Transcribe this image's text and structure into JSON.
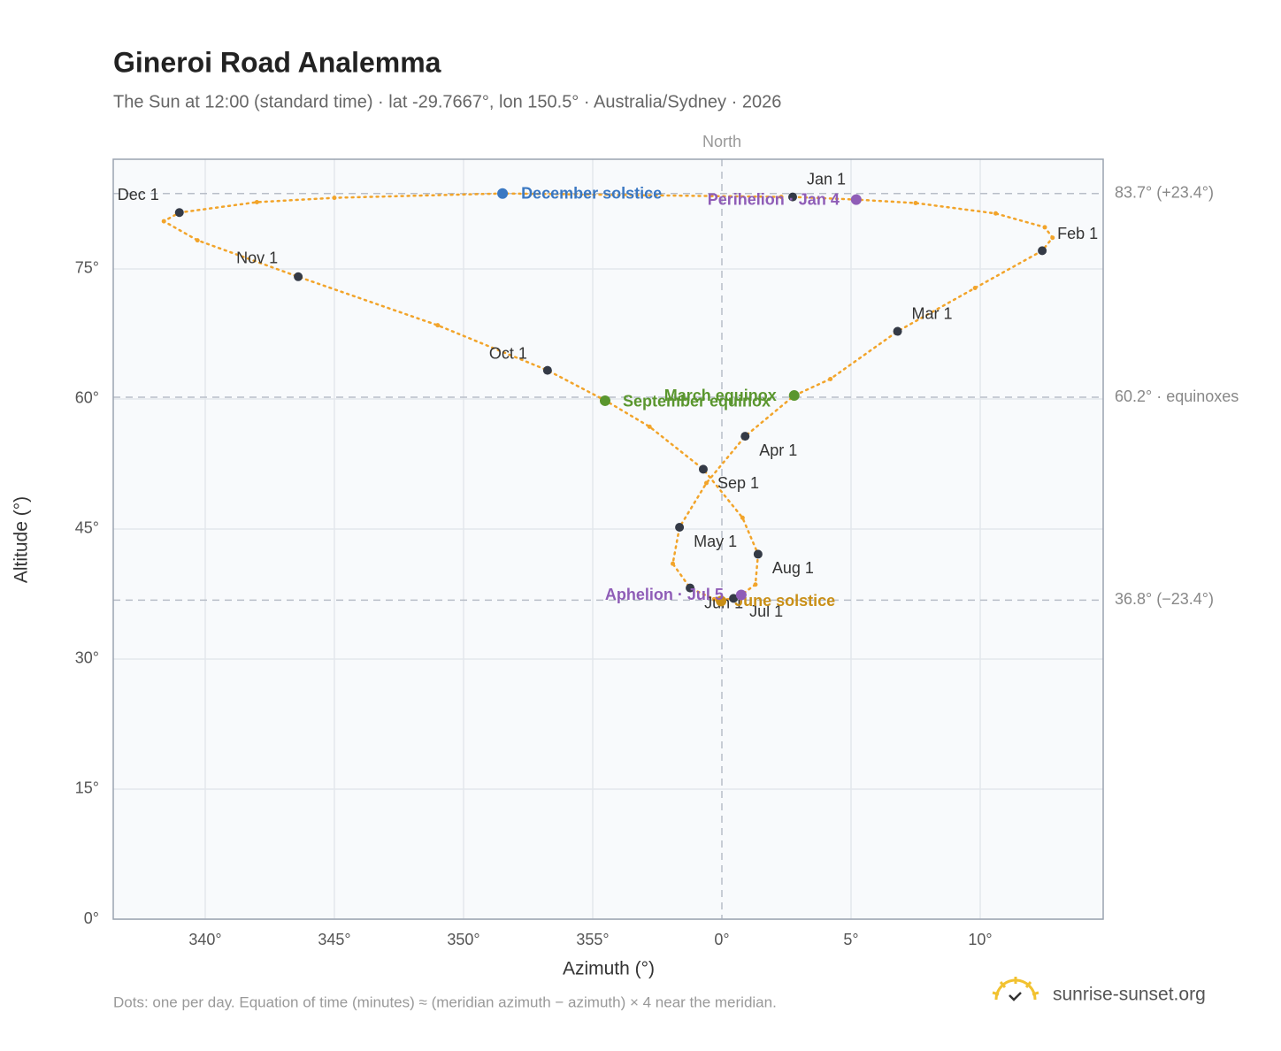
{
  "chart_data": {
    "type": "analemma",
    "title": "Gineroi Road Analemma",
    "subtitle": "The Sun at 12:00 (standard time) · lat -29.7667°, lon 150.5° · Australia/Sydney · 2026",
    "top_label": "North",
    "x_label": "Azimuth (°)",
    "y_label": "Altitude (°)",
    "footnote": "Dots: one per day. Equation of time (minutes) ≈ (meridian azimuth − azimuth) × 4 near the meridian.",
    "brand": "sunrise-sunset.org",
    "xlim": [
      -23.56,
      14.76
    ],
    "ylim": [
      0,
      87.65
    ],
    "xticks": [
      {
        "value": -20,
        "label": "340°"
      },
      {
        "value": -15,
        "label": "345°"
      },
      {
        "value": -10,
        "label": "350°"
      },
      {
        "value": -5,
        "label": "355°"
      },
      {
        "value": 0,
        "label": "0°"
      },
      {
        "value": 5,
        "label": "5°"
      },
      {
        "value": 10,
        "label": "10°"
      }
    ],
    "yticks": [
      {
        "value": 0,
        "label": "0°"
      },
      {
        "value": 15,
        "label": "15°"
      },
      {
        "value": 30,
        "label": "30°"
      },
      {
        "value": 45,
        "label": "45°"
      },
      {
        "value": 60,
        "label": "60°"
      },
      {
        "value": 75,
        "label": "75°"
      }
    ],
    "grid": true,
    "color": "#f2a42a",
    "path": {
      "x": [
        2.74,
        5.2,
        7.5,
        10.6,
        12.5,
        12.8,
        12.4,
        9.8,
        6.8,
        4.2,
        2.8,
        0.9,
        -0.6,
        -1.64,
        -1.9,
        -1.23,
        -0.3,
        -0.03,
        0.45,
        0.75,
        1.3,
        1.4,
        0.8,
        -0.72,
        -2.8,
        -4.5,
        -6.75,
        -11.0,
        -16.4,
        -20.3,
        -21.6,
        -21.0,
        -18.0,
        -15.0,
        -8.5,
        2.3
      ],
      "y": [
        83.3,
        83.0,
        82.6,
        81.4,
        79.8,
        78.6,
        77.1,
        72.8,
        67.8,
        62.3,
        60.4,
        55.7,
        50.3,
        45.2,
        41.0,
        38.2,
        36.9,
        36.8,
        37.0,
        37.4,
        38.6,
        42.1,
        46.3,
        51.9,
        56.8,
        59.8,
        63.3,
        68.5,
        74.1,
        78.3,
        80.5,
        81.5,
        82.7,
        83.2,
        83.7,
        83.3
      ]
    },
    "months": [
      {
        "label": "Jan 1",
        "x": 2.74,
        "y": 83.3
      },
      {
        "label": "Feb 1",
        "x": 12.4,
        "y": 77.1
      },
      {
        "label": "Mar 1",
        "x": 6.8,
        "y": 67.8
      },
      {
        "label": "Apr 1",
        "x": 0.9,
        "y": 55.7
      },
      {
        "label": "May 1",
        "x": -1.64,
        "y": 45.2
      },
      {
        "label": "Jun 1",
        "x": -1.23,
        "y": 38.2
      },
      {
        "label": "Jul 1",
        "x": 0.45,
        "y": 37.0
      },
      {
        "label": "Aug 1",
        "x": 1.4,
        "y": 42.1
      },
      {
        "label": "Sep 1",
        "x": -0.72,
        "y": 51.9
      },
      {
        "label": "Oct 1",
        "x": -6.75,
        "y": 63.3
      },
      {
        "label": "Nov 1",
        "x": -16.4,
        "y": 74.1
      },
      {
        "label": "Dec 1",
        "x": -21.0,
        "y": 81.5
      }
    ],
    "events": [
      {
        "label": "December solstice",
        "color": "#3b78c2",
        "x": -8.49,
        "y": 83.7
      },
      {
        "label": "Perihelion · Jan 4",
        "color": "#8f5db7",
        "x": 5.2,
        "y": 83.0
      },
      {
        "label": "March equinox",
        "color": "#5a962e",
        "x": 2.8,
        "y": 60.4
      },
      {
        "label": "September equinox",
        "color": "#5a962e",
        "x": -4.52,
        "y": 59.8
      },
      {
        "label": "June solstice",
        "color": "#c98f17",
        "x": -0.03,
        "y": 36.7
      },
      {
        "label": "Aphelion · Jul 5",
        "color": "#8f5db7",
        "x": 0.75,
        "y": 37.4
      }
    ],
    "reference_lines": [
      {
        "value": 83.7,
        "label": "83.7° (+23.4°)"
      },
      {
        "value": 60.2,
        "label": "60.2° · equinoxes"
      },
      {
        "value": 36.8,
        "label": "36.8° (−23.4°)"
      }
    ]
  }
}
